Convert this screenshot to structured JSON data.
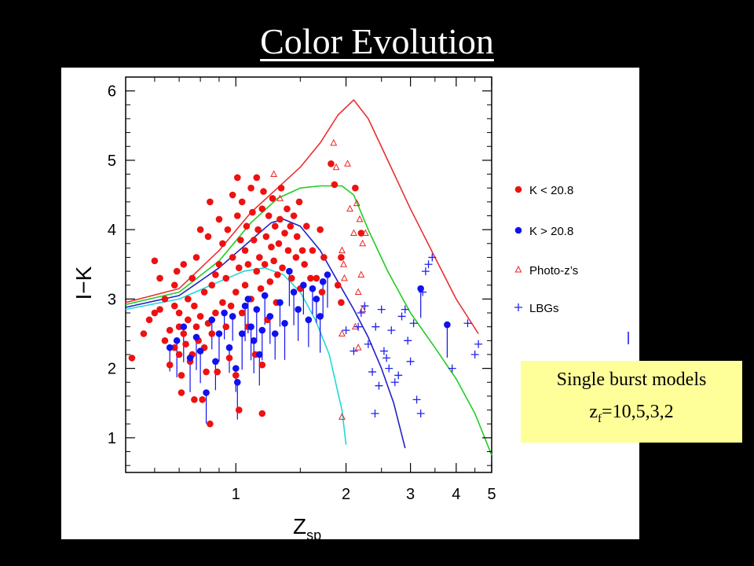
{
  "slide": {
    "title": "Color Evolution"
  },
  "model_box": {
    "line1": "Single burst models",
    "z_sym": "z",
    "z_sub": "f",
    "z_vals": "=10,5,3,2"
  },
  "colors": {
    "k_bright": "#ee1111",
    "k_faint": "#1111ee",
    "photoz": "#ee2222",
    "lbg": "#2222ee",
    "model_zf10": "#e83030",
    "model_zf5": "#22cc22",
    "model_zf3": "#2020cc",
    "model_zf2": "#20d8d8"
  },
  "chart_data": {
    "type": "scatter",
    "xscale": "log",
    "xlim": [
      0.5,
      5
    ],
    "ylim": [
      0.5,
      6.2
    ],
    "xticks": [
      "1",
      "2",
      "3",
      "4",
      "5"
    ],
    "yticks": [
      "1",
      "2",
      "3",
      "4",
      "5",
      "6"
    ],
    "xlabel": "Z",
    "xlabel_sub": "sp",
    "ylabel": "I−K",
    "legend_position": "right",
    "series": [
      {
        "name": "K < 20.8",
        "marker": "filled-circle",
        "points": [
          [
            0.52,
            2.15
          ],
          [
            0.56,
            2.5
          ],
          [
            0.58,
            2.7
          ],
          [
            0.6,
            2.8
          ],
          [
            0.6,
            3.55
          ],
          [
            0.62,
            3.3
          ],
          [
            0.62,
            2.85
          ],
          [
            0.64,
            2.4
          ],
          [
            0.64,
            3.0
          ],
          [
            0.66,
            2.55
          ],
          [
            0.66,
            2.05
          ],
          [
            0.68,
            2.3
          ],
          [
            0.68,
            2.9
          ],
          [
            0.68,
            3.2
          ],
          [
            0.69,
            3.4
          ],
          [
            0.7,
            2.2
          ],
          [
            0.7,
            2.6
          ],
          [
            0.7,
            2.8
          ],
          [
            0.71,
            1.9
          ],
          [
            0.71,
            1.65
          ],
          [
            0.72,
            3.5
          ],
          [
            0.72,
            2.5
          ],
          [
            0.73,
            2.35
          ],
          [
            0.74,
            3.0
          ],
          [
            0.74,
            2.7
          ],
          [
            0.75,
            2.1
          ],
          [
            0.76,
            3.3
          ],
          [
            0.76,
            2.2
          ],
          [
            0.77,
            1.55
          ],
          [
            0.77,
            2.9
          ],
          [
            0.78,
            2.6
          ],
          [
            0.78,
            3.6
          ],
          [
            0.79,
            2.4
          ],
          [
            0.8,
            2.75
          ],
          [
            0.8,
            4.0
          ],
          [
            0.81,
            1.55
          ],
          [
            0.82,
            3.1
          ],
          [
            0.82,
            2.3
          ],
          [
            0.83,
            1.95
          ],
          [
            0.84,
            3.9
          ],
          [
            0.84,
            2.65
          ],
          [
            0.85,
            4.4
          ],
          [
            0.85,
            1.2
          ],
          [
            0.86,
            3.2
          ],
          [
            0.86,
            2.5
          ],
          [
            0.88,
            2.8
          ],
          [
            0.88,
            3.35
          ],
          [
            0.89,
            1.95
          ],
          [
            0.9,
            3.5
          ],
          [
            0.9,
            4.15
          ],
          [
            0.92,
            2.95
          ],
          [
            0.92,
            3.8
          ],
          [
            0.94,
            2.6
          ],
          [
            0.94,
            3.3
          ],
          [
            0.95,
            4.0
          ],
          [
            0.96,
            2.15
          ],
          [
            0.97,
            2.9
          ],
          [
            0.98,
            4.5
          ],
          [
            0.98,
            3.6
          ],
          [
            1.0,
            3.1
          ],
          [
            1.0,
            1.9
          ],
          [
            1.01,
            4.75
          ],
          [
            1.01,
            4.2
          ],
          [
            1.02,
            3.45
          ],
          [
            1.02,
            1.4
          ],
          [
            1.03,
            3.85
          ],
          [
            1.04,
            2.8
          ],
          [
            1.04,
            4.4
          ],
          [
            1.06,
            3.2
          ],
          [
            1.06,
            3.7
          ],
          [
            1.07,
            4.05
          ],
          [
            1.08,
            2.6
          ],
          [
            1.08,
            3.5
          ],
          [
            1.1,
            4.6
          ],
          [
            1.1,
            3.0
          ],
          [
            1.11,
            4.25
          ],
          [
            1.12,
            3.85
          ],
          [
            1.13,
            2.2
          ],
          [
            1.14,
            3.4
          ],
          [
            1.14,
            4.75
          ],
          [
            1.15,
            4.0
          ],
          [
            1.16,
            3.6
          ],
          [
            1.17,
            3.15
          ],
          [
            1.18,
            4.3
          ],
          [
            1.18,
            1.35
          ],
          [
            1.19,
            4.55
          ],
          [
            1.2,
            3.5
          ],
          [
            1.21,
            3.9
          ],
          [
            1.22,
            2.7
          ],
          [
            1.23,
            4.2
          ],
          [
            1.24,
            3.25
          ],
          [
            1.25,
            3.75
          ],
          [
            1.26,
            4.45
          ],
          [
            1.27,
            3.55
          ],
          [
            1.28,
            4.05
          ],
          [
            1.29,
            2.95
          ],
          [
            1.3,
            3.35
          ],
          [
            1.31,
            3.8
          ],
          [
            1.32,
            4.15
          ],
          [
            1.33,
            4.6
          ],
          [
            1.34,
            3.45
          ],
          [
            1.36,
            3.95
          ],
          [
            1.38,
            4.3
          ],
          [
            1.39,
            3.7
          ],
          [
            1.41,
            4.05
          ],
          [
            1.42,
            3.3
          ],
          [
            1.44,
            4.2
          ],
          [
            1.46,
            3.6
          ],
          [
            1.47,
            3.9
          ],
          [
            1.49,
            4.4
          ],
          [
            1.5,
            3.15
          ],
          [
            1.52,
            3.7
          ],
          [
            1.54,
            3.5
          ],
          [
            1.56,
            4.05
          ],
          [
            1.6,
            3.3
          ],
          [
            1.62,
            3.7
          ],
          [
            1.66,
            3.3
          ],
          [
            1.7,
            4.0
          ],
          [
            1.72,
            3.1
          ],
          [
            1.74,
            3.6
          ],
          [
            1.82,
            4.95
          ],
          [
            1.86,
            4.65
          ],
          [
            2.12,
            4.6
          ],
          [
            2.2,
            3.95
          ],
          [
            1.9,
            3.2
          ],
          [
            1.94,
            3.6
          ],
          [
            1.94,
            2.95
          ],
          [
            1.18,
            2.05
          ]
        ]
      },
      {
        "name": "K > 20.8",
        "marker": "filled-circle",
        "errorbar": "down",
        "points": [
          [
            0.66,
            2.3
          ],
          [
            0.69,
            2.4
          ],
          [
            0.72,
            2.6
          ],
          [
            0.75,
            2.15
          ],
          [
            0.78,
            2.45
          ],
          [
            0.8,
            2.25
          ],
          [
            0.83,
            1.65
          ],
          [
            0.86,
            2.7
          ],
          [
            0.88,
            2.1
          ],
          [
            0.9,
            2.5
          ],
          [
            0.93,
            2.8
          ],
          [
            0.96,
            2.3
          ],
          [
            0.98,
            2.75
          ],
          [
            1.0,
            2.0
          ],
          [
            1.01,
            1.8
          ],
          [
            1.04,
            2.5
          ],
          [
            1.06,
            2.9
          ],
          [
            1.08,
            3.0
          ],
          [
            1.1,
            2.6
          ],
          [
            1.12,
            2.4
          ],
          [
            1.14,
            2.85
          ],
          [
            1.16,
            2.2
          ],
          [
            1.18,
            2.55
          ],
          [
            1.2,
            3.05
          ],
          [
            1.24,
            2.75
          ],
          [
            1.28,
            2.5
          ],
          [
            1.32,
            2.95
          ],
          [
            1.36,
            2.65
          ],
          [
            1.4,
            3.4
          ],
          [
            1.44,
            3.1
          ],
          [
            1.48,
            2.85
          ],
          [
            1.53,
            3.2
          ],
          [
            1.58,
            2.7
          ],
          [
            1.62,
            3.15
          ],
          [
            1.66,
            3.0
          ],
          [
            1.7,
            2.75
          ],
          [
            1.73,
            3.25
          ],
          [
            1.78,
            3.35
          ],
          [
            3.2,
            3.15
          ],
          [
            3.78,
            2.63
          ]
        ]
      },
      {
        "name": "Photo-z’s",
        "marker": "open-triangle",
        "points": [
          [
            1.27,
            4.8
          ],
          [
            1.32,
            4.45
          ],
          [
            1.85,
            5.25
          ],
          [
            1.88,
            4.9
          ],
          [
            2.02,
            4.95
          ],
          [
            2.05,
            4.3
          ],
          [
            2.1,
            3.95
          ],
          [
            2.14,
            4.38
          ],
          [
            2.18,
            4.15
          ],
          [
            2.22,
            3.8
          ],
          [
            2.2,
            3.35
          ],
          [
            2.26,
            3.95
          ],
          [
            2.16,
            2.3
          ],
          [
            1.97,
            3.5
          ],
          [
            1.95,
            3.7
          ],
          [
            1.95,
            2.5
          ],
          [
            1.98,
            3.3
          ],
          [
            2.12,
            2.6
          ],
          [
            2.16,
            3.1
          ],
          [
            2.22,
            2.85
          ],
          [
            1.95,
            1.3
          ]
        ]
      },
      {
        "name": "LBGs",
        "marker": "plus",
        "points": [
          [
            2.0,
            2.55
          ],
          [
            2.1,
            2.25
          ],
          [
            2.16,
            2.6
          ],
          [
            2.2,
            2.8
          ],
          [
            2.25,
            2.9
          ],
          [
            2.3,
            2.35
          ],
          [
            2.36,
            1.95
          ],
          [
            2.41,
            2.6
          ],
          [
            2.46,
            1.75
          ],
          [
            2.5,
            2.85
          ],
          [
            2.54,
            2.25
          ],
          [
            2.58,
            2.15
          ],
          [
            2.62,
            2.0
          ],
          [
            2.66,
            2.55
          ],
          [
            2.72,
            1.8
          ],
          [
            2.78,
            1.9
          ],
          [
            2.84,
            2.75
          ],
          [
            2.9,
            2.85
          ],
          [
            2.95,
            2.4
          ],
          [
            3.0,
            2.1
          ],
          [
            3.06,
            2.65
          ],
          [
            3.12,
            1.55
          ],
          [
            3.2,
            1.35
          ],
          [
            3.24,
            3.1
          ],
          [
            3.3,
            3.4
          ],
          [
            3.36,
            3.5
          ],
          [
            3.44,
            3.6
          ],
          [
            2.4,
            1.35
          ],
          [
            3.9,
            2.0
          ],
          [
            4.3,
            2.65
          ],
          [
            4.5,
            2.2
          ],
          [
            4.6,
            2.35
          ]
        ]
      }
    ],
    "models": [
      {
        "label": "zf=10",
        "points": [
          [
            0.5,
            2.95
          ],
          [
            0.7,
            3.15
          ],
          [
            0.9,
            3.7
          ],
          [
            1.1,
            4.25
          ],
          [
            1.3,
            4.6
          ],
          [
            1.5,
            4.9
          ],
          [
            1.7,
            5.25
          ],
          [
            1.9,
            5.65
          ],
          [
            2.1,
            5.87
          ],
          [
            2.3,
            5.6
          ],
          [
            2.6,
            5.0
          ],
          [
            3.0,
            4.3
          ],
          [
            3.5,
            3.6
          ],
          [
            4.0,
            3.0
          ],
          [
            4.6,
            2.5
          ]
        ]
      },
      {
        "label": "zf=5",
        "points": [
          [
            0.5,
            2.92
          ],
          [
            0.7,
            3.1
          ],
          [
            0.9,
            3.55
          ],
          [
            1.1,
            4.1
          ],
          [
            1.3,
            4.45
          ],
          [
            1.5,
            4.6
          ],
          [
            1.7,
            4.63
          ],
          [
            1.95,
            4.63
          ],
          [
            2.1,
            4.5
          ],
          [
            2.3,
            4.0
          ],
          [
            2.6,
            3.4
          ],
          [
            3.0,
            2.8
          ],
          [
            3.5,
            2.3
          ],
          [
            4.0,
            1.85
          ],
          [
            4.5,
            1.35
          ],
          [
            5.0,
            0.75
          ]
        ]
      },
      {
        "label": "zf=3",
        "points": [
          [
            0.5,
            2.88
          ],
          [
            0.7,
            3.05
          ],
          [
            0.9,
            3.45
          ],
          [
            1.1,
            3.85
          ],
          [
            1.25,
            4.1
          ],
          [
            1.35,
            4.15
          ],
          [
            1.5,
            4.05
          ],
          [
            1.7,
            3.7
          ],
          [
            1.9,
            3.25
          ],
          [
            2.1,
            2.85
          ],
          [
            2.3,
            2.45
          ],
          [
            2.5,
            2.0
          ],
          [
            2.7,
            1.5
          ],
          [
            2.9,
            0.85
          ]
        ]
      },
      {
        "label": "zf=2",
        "points": [
          [
            0.5,
            2.85
          ],
          [
            0.7,
            3.0
          ],
          [
            0.9,
            3.25
          ],
          [
            1.05,
            3.4
          ],
          [
            1.2,
            3.45
          ],
          [
            1.35,
            3.35
          ],
          [
            1.5,
            3.1
          ],
          [
            1.65,
            2.7
          ],
          [
            1.8,
            2.2
          ],
          [
            1.95,
            1.4
          ],
          [
            2.0,
            0.9
          ]
        ]
      }
    ]
  }
}
